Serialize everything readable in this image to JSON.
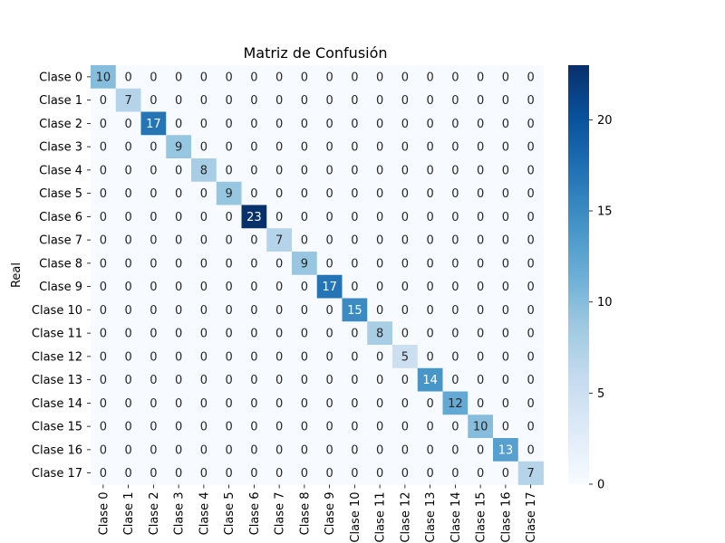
{
  "chart_data": {
    "type": "heatmap",
    "title": "Matriz de Confusión",
    "ylabel": "Real",
    "xlabel": "",
    "row_labels": [
      "Clase 0",
      "Clase 1",
      "Clase 2",
      "Clase 3",
      "Clase 4",
      "Clase 5",
      "Clase 6",
      "Clase 7",
      "Clase 8",
      "Clase 9",
      "Clase 10",
      "Clase 11",
      "Clase 12",
      "Clase 13",
      "Clase 14",
      "Clase 15",
      "Clase 16",
      "Clase 17"
    ],
    "col_labels": [
      "Clase 0",
      "Clase 1",
      "Clase 2",
      "Clase 3",
      "Clase 4",
      "Clase 5",
      "Clase 6",
      "Clase 7",
      "Clase 8",
      "Clase 9",
      "Clase 10",
      "Clase 11",
      "Clase 12",
      "Clase 13",
      "Clase 14",
      "Clase 15",
      "Clase 16",
      "Clase 17"
    ],
    "diagonal_values": [
      10,
      7,
      17,
      9,
      8,
      9,
      23,
      7,
      9,
      17,
      15,
      8,
      5,
      14,
      12,
      10,
      13,
      7
    ],
    "off_diagonal_value": 0,
    "value_range": [
      0,
      23
    ],
    "colorbar_ticks": [
      0,
      5,
      10,
      15,
      20
    ],
    "colormap": "Blues",
    "colormap_low": "#f7fbff",
    "colormap_high": "#08306b",
    "grid": false,
    "legend": "colorbar-right"
  }
}
